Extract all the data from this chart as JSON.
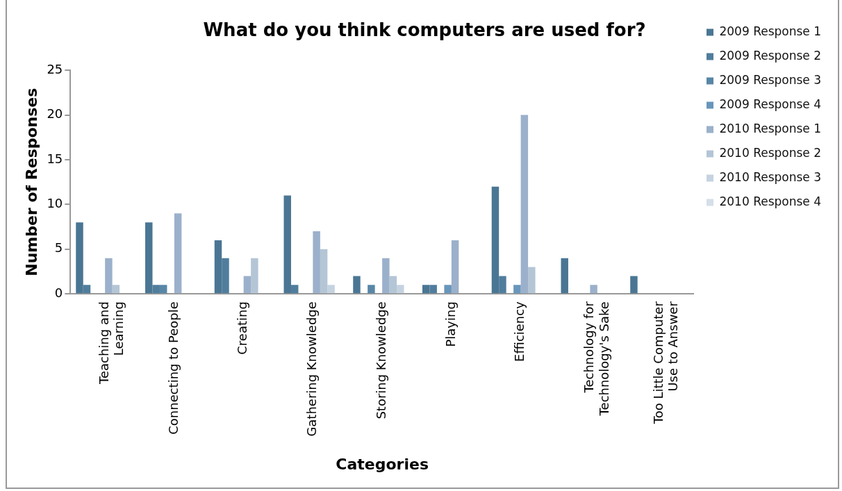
{
  "chart_data": {
    "type": "bar",
    "title": "What do you think computers are used for?",
    "xlabel": "Categories",
    "ylabel": "Number of Responses",
    "categories": [
      "Teaching and Learning",
      "Connecting to People",
      "Creating",
      "Gathering Knowledge",
      "Storing Knowledge",
      "Playing",
      "Efficiency",
      "Technology for Technology's Sake",
      "Too Little Computer Use to Answer"
    ],
    "series": [
      {
        "name": "2009 Response 1",
        "color": "#4a7694",
        "values": [
          8,
          8,
          6,
          11,
          2,
          1,
          12,
          4,
          2
        ]
      },
      {
        "name": "2009 Response 2",
        "color": "#507d9c",
        "values": [
          1,
          1,
          4,
          1,
          0,
          1,
          2,
          0,
          0
        ]
      },
      {
        "name": "2009 Response 3",
        "color": "#5886a6",
        "values": [
          0,
          1,
          0,
          0,
          1,
          0,
          0,
          0,
          0
        ]
      },
      {
        "name": "2009 Response 4",
        "color": "#6896bb",
        "values": [
          0,
          0,
          0,
          0,
          0,
          1,
          1,
          0,
          0
        ]
      },
      {
        "name": "2010 Response 1",
        "color": "#9bb0cb",
        "values": [
          4,
          9,
          2,
          7,
          4,
          6,
          20,
          1,
          0
        ]
      },
      {
        "name": "2010 Response 2",
        "color": "#b4c5d6",
        "values": [
          1,
          0,
          4,
          5,
          2,
          0,
          3,
          0,
          0
        ]
      },
      {
        "name": "2010 Response 3",
        "color": "#c5d3e0",
        "values": [
          0,
          0,
          0,
          1,
          1,
          0,
          0,
          0,
          0
        ]
      },
      {
        "name": "2010 Response 4",
        "color": "#d5dfe9",
        "values": [
          0,
          0,
          0,
          0,
          0,
          0,
          0,
          0,
          0
        ]
      }
    ],
    "ylim": [
      0,
      25
    ],
    "yticks": [
      0,
      5,
      10,
      15,
      20,
      25
    ],
    "grid": false,
    "legend": "right"
  }
}
